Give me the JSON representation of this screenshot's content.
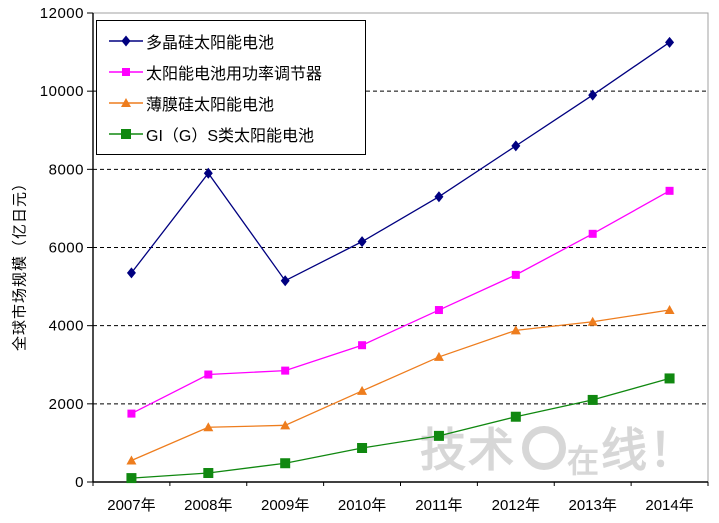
{
  "chart_data": {
    "type": "line",
    "title": "",
    "xlabel": "",
    "ylabel": "全球市场规模（亿日元）",
    "ylim": [
      0,
      12000
    ],
    "yticks": [
      0,
      2000,
      4000,
      6000,
      8000,
      10000,
      12000
    ],
    "grid": "horizontal dashed black lines, white plot background",
    "legend_position": "top-left inside plot, white box with black border",
    "categories": [
      "2007年",
      "2008年",
      "2009年",
      "2010年",
      "2011年",
      "2012年",
      "2013年",
      "2014年"
    ],
    "series": [
      {
        "name": "多晶硅太阳能电池",
        "color": "#000080",
        "marker": "diamond",
        "values": [
          5350,
          7900,
          5150,
          6150,
          7300,
          8600,
          9900,
          11250
        ]
      },
      {
        "name": "太阳能电池用功率调节器",
        "color": "#FF00FF",
        "marker": "square",
        "values": [
          1750,
          2750,
          2850,
          3500,
          4400,
          5300,
          6350,
          7450
        ]
      },
      {
        "name": "薄膜硅太阳能电池",
        "color": "#EE7D1E",
        "marker": "triangle",
        "values": [
          550,
          1400,
          1450,
          2330,
          3200,
          3880,
          4100,
          4400
        ]
      },
      {
        "name": "GI（G）S类太阳能电池",
        "color": "#108810",
        "marker": "square",
        "values": [
          100,
          230,
          480,
          870,
          1180,
          1670,
          2100,
          2650
        ]
      }
    ]
  },
  "watermark": {
    "full_text": "技术Ｃ在线！",
    "t1": "技术",
    "t2": "在",
    "t3": "线",
    "t4": "！"
  },
  "colors": {
    "plot_border": "#A0A0A0",
    "axis": "#000000",
    "gridline": "#000000",
    "watermark": "#D7D7D7"
  }
}
